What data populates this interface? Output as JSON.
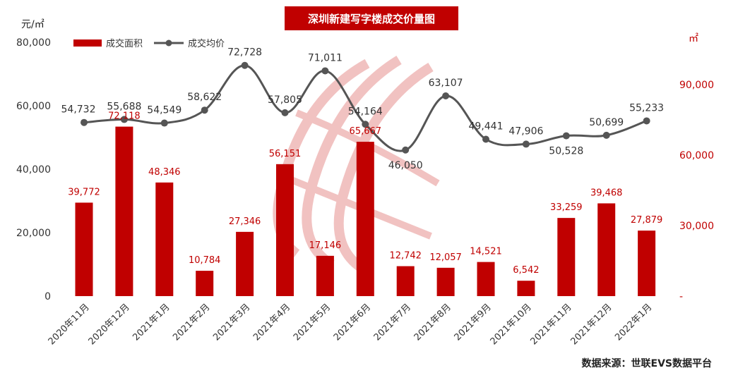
{
  "title": "深圳新建写字楼成交价量图",
  "source": "数据来源：世联EVS数据平台",
  "left_unit": "元/㎡",
  "right_unit": "㎡",
  "colors": {
    "bar": "#c00000",
    "line": "#555555",
    "title_bg": "#c00000",
    "bar_label": "#c00000"
  },
  "chart_data": {
    "type": "bar",
    "title": "深圳新建写字楼成交价量图",
    "categories": [
      "2020年11月",
      "2020年12月",
      "2021年1月",
      "2021年2月",
      "2021年3月",
      "2021年4月",
      "2021年5月",
      "2021年6月",
      "2021年7月",
      "2021年8月",
      "2021年9月",
      "2021年10月",
      "2021年11月",
      "2021年12月",
      "2022年1月"
    ],
    "series": [
      {
        "name": "成交面积",
        "type": "bar",
        "axis": "right",
        "values": [
          39772,
          72118,
          48346,
          10784,
          27346,
          56151,
          17146,
          65667,
          12742,
          12057,
          14521,
          6542,
          33259,
          39468,
          27879
        ]
      },
      {
        "name": "成交均价",
        "type": "line",
        "axis": "left",
        "values": [
          54732,
          55688,
          54549,
          58622,
          72728,
          57805,
          71011,
          54164,
          46050,
          63107,
          49441,
          47906,
          50528,
          50699,
          55233
        ]
      }
    ],
    "y_left": {
      "label": "元/㎡",
      "ylim": [
        0,
        80000
      ],
      "ticks": [
        "0",
        "20,000",
        "40,000",
        "60,000",
        "80,000"
      ]
    },
    "y_right": {
      "label": "㎡",
      "ylim": [
        0,
        108000
      ],
      "ticks": [
        "-",
        "30,000",
        "60,000",
        "90,000"
      ]
    },
    "legend": "top-left",
    "grid": false
  }
}
